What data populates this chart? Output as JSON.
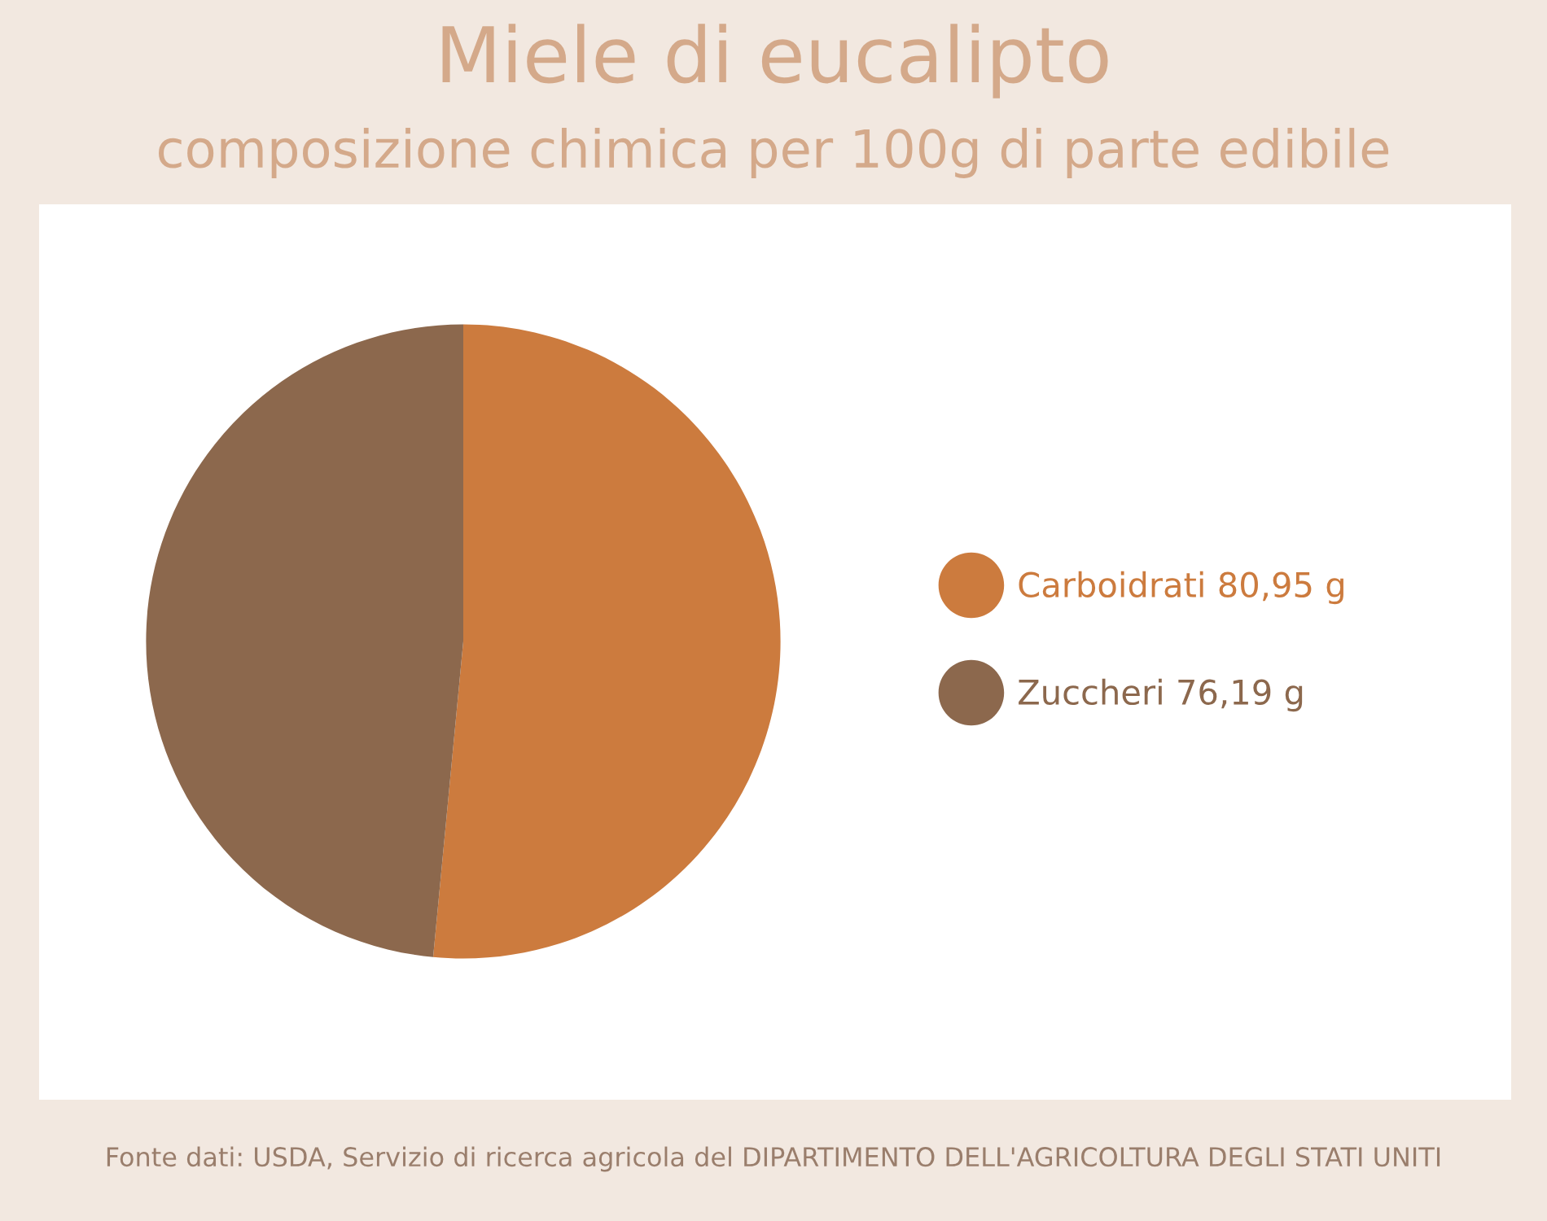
{
  "chart_data": {
    "type": "pie",
    "title": "Miele di eucalipto",
    "subtitle": "composizione chimica per 100g di parte edibile",
    "categories": [
      "Carboidrati",
      "Zuccheri"
    ],
    "values": [
      80.95,
      76.19
    ],
    "value_labels": [
      "80,95 g",
      "76,19 g"
    ],
    "colors": [
      "#cc7b3e",
      "#8c684d"
    ],
    "legend": "right",
    "annotations": [
      "Fonte dati: USDA, Servizio di ricerca agricola del DIPARTIMENTO DELL'AGRICOLTURA DEGLI STATI UNITI"
    ]
  }
}
